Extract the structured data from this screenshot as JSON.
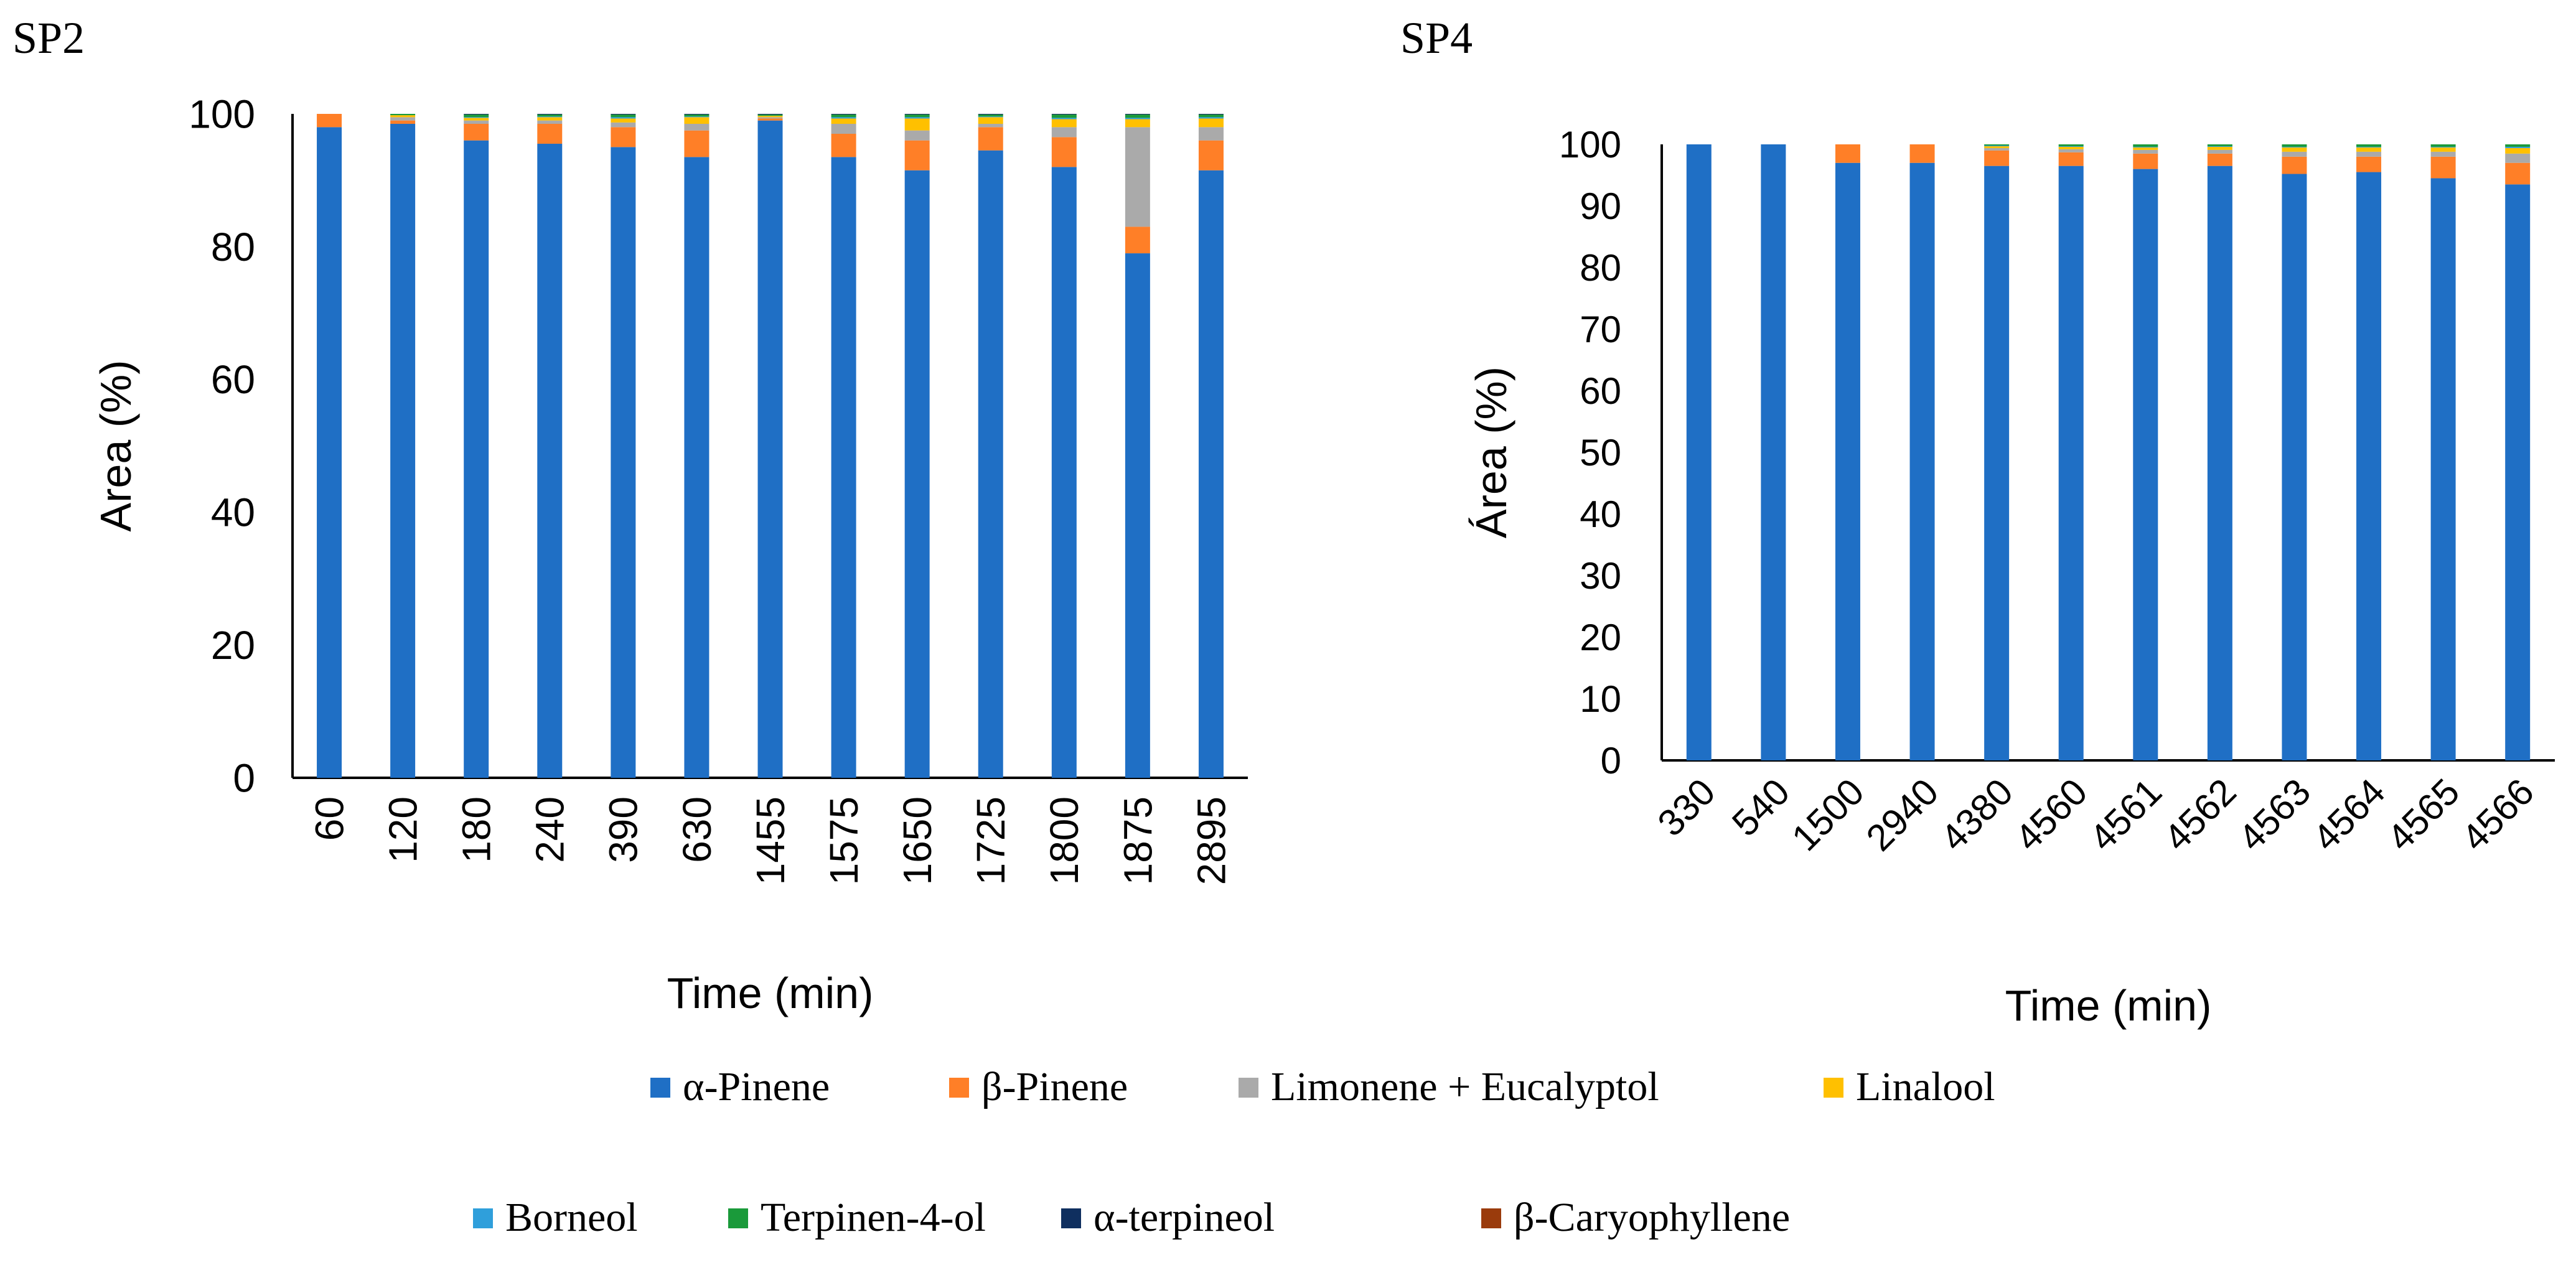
{
  "colors": {
    "alpha_pinene": "#1f6fc5",
    "beta_pinene": "#ff7f27",
    "limonene_eucalyptol": "#aaaaaa",
    "linalool": "#ffc000",
    "borneol": "#2f9fdb",
    "terpinen_4_ol": "#1a9a3a",
    "alpha_terpineol": "#0f2f5f",
    "beta_caryophyllene": "#9a3b0c"
  },
  "legend": {
    "items": [
      {
        "label": "α-Pinene",
        "color_key": "alpha_pinene"
      },
      {
        "label": "β-Pinene",
        "color_key": "beta_pinene"
      },
      {
        "label": "Limonene + Eucalyptol",
        "color_key": "limonene_eucalyptol"
      },
      {
        "label": "Linalool",
        "color_key": "linalool"
      },
      {
        "label": "Borneol",
        "color_key": "borneol"
      },
      {
        "label": "Terpinen-4-ol",
        "color_key": "terpinen_4_ol"
      },
      {
        "label": "α-terpineol",
        "color_key": "alpha_terpineol"
      },
      {
        "label": "β-Caryophyllene",
        "color_key": "beta_caryophyllene"
      }
    ]
  },
  "chart_data": [
    {
      "title": "SP2",
      "type": "bar",
      "stacked": true,
      "xlabel": "Time (min)",
      "ylabel": "Area (%)",
      "ylim": [
        0,
        100
      ],
      "yticks": [
        0,
        20,
        40,
        60,
        80,
        100
      ],
      "categories": [
        "60",
        "120",
        "180",
        "240",
        "390",
        "630",
        "1455",
        "1575",
        "1650",
        "1725",
        "1800",
        "1875",
        "2895"
      ],
      "series": [
        {
          "name": "α-Pinene",
          "values": [
            98.0,
            98.5,
            96.0,
            95.5,
            95.0,
            93.5,
            99.0,
            93.5,
            91.5,
            94.5,
            92.0,
            79.0,
            91.5
          ]
        },
        {
          "name": "β-Pinene",
          "values": [
            2.0,
            0.5,
            2.5,
            3.0,
            3.0,
            4.0,
            0.3,
            3.5,
            4.5,
            3.5,
            4.5,
            4.0,
            4.5
          ]
        },
        {
          "name": "Limonene + Eucalyptol",
          "values": [
            0,
            0.5,
            0.5,
            0.5,
            0.7,
            1.0,
            0.2,
            1.5,
            1.5,
            0.5,
            1.5,
            15.0,
            2.0
          ]
        },
        {
          "name": "Linalool",
          "values": [
            0,
            0.3,
            0.4,
            0.5,
            0.6,
            1.0,
            0.2,
            0.8,
            1.8,
            1.0,
            1.2,
            1.2,
            1.3
          ]
        },
        {
          "name": "Borneol",
          "values": [
            0,
            0,
            0.1,
            0.1,
            0.2,
            0.1,
            0,
            0.2,
            0.2,
            0.1,
            0.2,
            0.2,
            0.2
          ]
        },
        {
          "name": "Terpinen-4-ol",
          "values": [
            0,
            0.2,
            0.4,
            0.3,
            0.4,
            0.3,
            0.2,
            0.4,
            0.4,
            0.3,
            0.5,
            0.5,
            0.4
          ]
        },
        {
          "name": "α-terpineol",
          "values": [
            0,
            0,
            0.1,
            0.1,
            0.1,
            0.1,
            0.1,
            0.1,
            0.1,
            0.1,
            0.1,
            0.1,
            0.1
          ]
        },
        {
          "name": "β-Caryophyllene",
          "values": [
            0,
            0,
            0,
            0,
            0,
            0,
            0,
            0,
            0,
            0,
            0,
            0,
            0
          ]
        }
      ]
    },
    {
      "title": "SP4",
      "type": "bar",
      "stacked": true,
      "xlabel": "Time (min)",
      "ylabel": "Área (%)",
      "ylim": [
        0,
        100
      ],
      "yticks": [
        0,
        10,
        20,
        30,
        40,
        50,
        60,
        70,
        80,
        90,
        100
      ],
      "categories": [
        "330",
        "540",
        "1500",
        "2940",
        "4380",
        "4560",
        "4561",
        "4562",
        "4563",
        "4564",
        "4565",
        "4566"
      ],
      "series": [
        {
          "name": "α-Pinene",
          "values": [
            100,
            100,
            97.0,
            97.0,
            96.5,
            96.5,
            96.0,
            96.5,
            95.2,
            95.5,
            94.5,
            93.5
          ]
        },
        {
          "name": "β-Pinene",
          "values": [
            0,
            0,
            3.0,
            3.0,
            2.5,
            2.2,
            2.5,
            2.0,
            2.8,
            2.5,
            3.5,
            3.5
          ]
        },
        {
          "name": "Limonene + Eucalyptol",
          "values": [
            0,
            0,
            0,
            0,
            0.4,
            0.5,
            0.6,
            0.6,
            0.8,
            0.8,
            0.8,
            1.5
          ]
        },
        {
          "name": "Linalool",
          "values": [
            0,
            0,
            0,
            0,
            0.3,
            0.4,
            0.4,
            0.5,
            0.7,
            0.7,
            0.7,
            0.9
          ]
        },
        {
          "name": "Borneol",
          "values": [
            0,
            0,
            0,
            0,
            0.1,
            0.1,
            0.1,
            0.1,
            0.1,
            0.1,
            0.1,
            0.2
          ]
        },
        {
          "name": "Terpinen-4-ol",
          "values": [
            0,
            0,
            0,
            0,
            0.2,
            0.3,
            0.4,
            0.3,
            0.4,
            0.4,
            0.4,
            0.4
          ]
        },
        {
          "name": "α-terpineol",
          "values": [
            0,
            0,
            0,
            0,
            0,
            0,
            0,
            0,
            0,
            0,
            0,
            0
          ]
        },
        {
          "name": "β-Caryophyllene",
          "values": [
            0,
            0,
            0,
            0,
            0,
            0,
            0,
            0,
            0,
            0,
            0,
            0
          ]
        }
      ]
    }
  ]
}
